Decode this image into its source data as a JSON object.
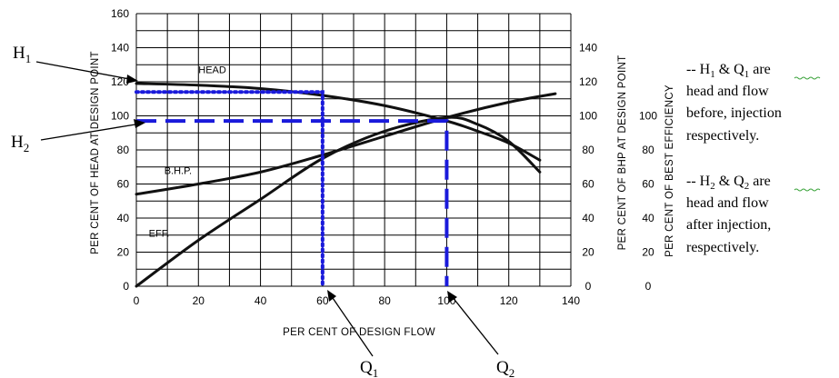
{
  "chart_data": {
    "type": "line",
    "xlabel": "PER CENT OF DESIGN FLOW",
    "ylabel_left": "PER CENT OF HEAD AT DESIGN POINT",
    "ylabel_right_bhp": "PER CENT OF BHP AT DESIGN POINT",
    "ylabel_right_eff": "PER CENT OF BEST EFFICIENCY",
    "xlim": [
      0,
      140
    ],
    "ylim": [
      0,
      160
    ],
    "grid": true,
    "x_ticks": [
      "0",
      "20",
      "40",
      "60",
      "80",
      "100",
      "120",
      "140"
    ],
    "y_ticks_left": [
      "0",
      "20",
      "40",
      "60",
      "80",
      "100",
      "120",
      "140",
      "160"
    ],
    "y_ticks_bhp": [
      "0",
      "20",
      "40",
      "60",
      "80",
      "100",
      "120",
      "140"
    ],
    "y_ticks_eff": [
      "0",
      "20",
      "40",
      "60",
      "80",
      "100"
    ],
    "series": [
      {
        "name": "HEAD",
        "label_pos": [
          20,
          125
        ],
        "points": [
          [
            0,
            119
          ],
          [
            20,
            118
          ],
          [
            40,
            116
          ],
          [
            60,
            112
          ],
          [
            80,
            106
          ],
          [
            100,
            97
          ],
          [
            110,
            91
          ],
          [
            120,
            84
          ],
          [
            130,
            74
          ]
        ]
      },
      {
        "name": "B.H.P.",
        "label_pos": [
          9,
          66
        ],
        "points": [
          [
            0,
            54
          ],
          [
            20,
            60
          ],
          [
            40,
            67
          ],
          [
            60,
            77
          ],
          [
            80,
            88
          ],
          [
            100,
            99
          ],
          [
            120,
            108
          ],
          [
            135,
            113
          ]
        ]
      },
      {
        "name": "EFF.",
        "label_pos": [
          4,
          29
        ],
        "points": [
          [
            0,
            0
          ],
          [
            20,
            27
          ],
          [
            40,
            51
          ],
          [
            60,
            75
          ],
          [
            80,
            91
          ],
          [
            100,
            99
          ],
          [
            110,
            95
          ],
          [
            120,
            85
          ],
          [
            130,
            67
          ]
        ]
      }
    ],
    "markers": {
      "H1_level": 114,
      "Q1_flow": 60,
      "H2_level": 97,
      "Q2_flow": 100
    },
    "annotations": {
      "H1_symbol": "H",
      "H1_sub": "1",
      "H2_symbol": "H",
      "H2_sub": "2",
      "Q1_symbol": "Q",
      "Q1_sub": "1",
      "Q2_symbol": "Q",
      "Q2_sub": "2",
      "note1_lines": [
        "-- H",
        "1",
        " & Q",
        "1",
        " are",
        "head and flow",
        "before, injection",
        "respectively."
      ],
      "note2_lines": [
        "-- H",
        "2",
        " & Q",
        "2",
        " are",
        "head and flow",
        "after injection,",
        "respectively."
      ]
    }
  }
}
